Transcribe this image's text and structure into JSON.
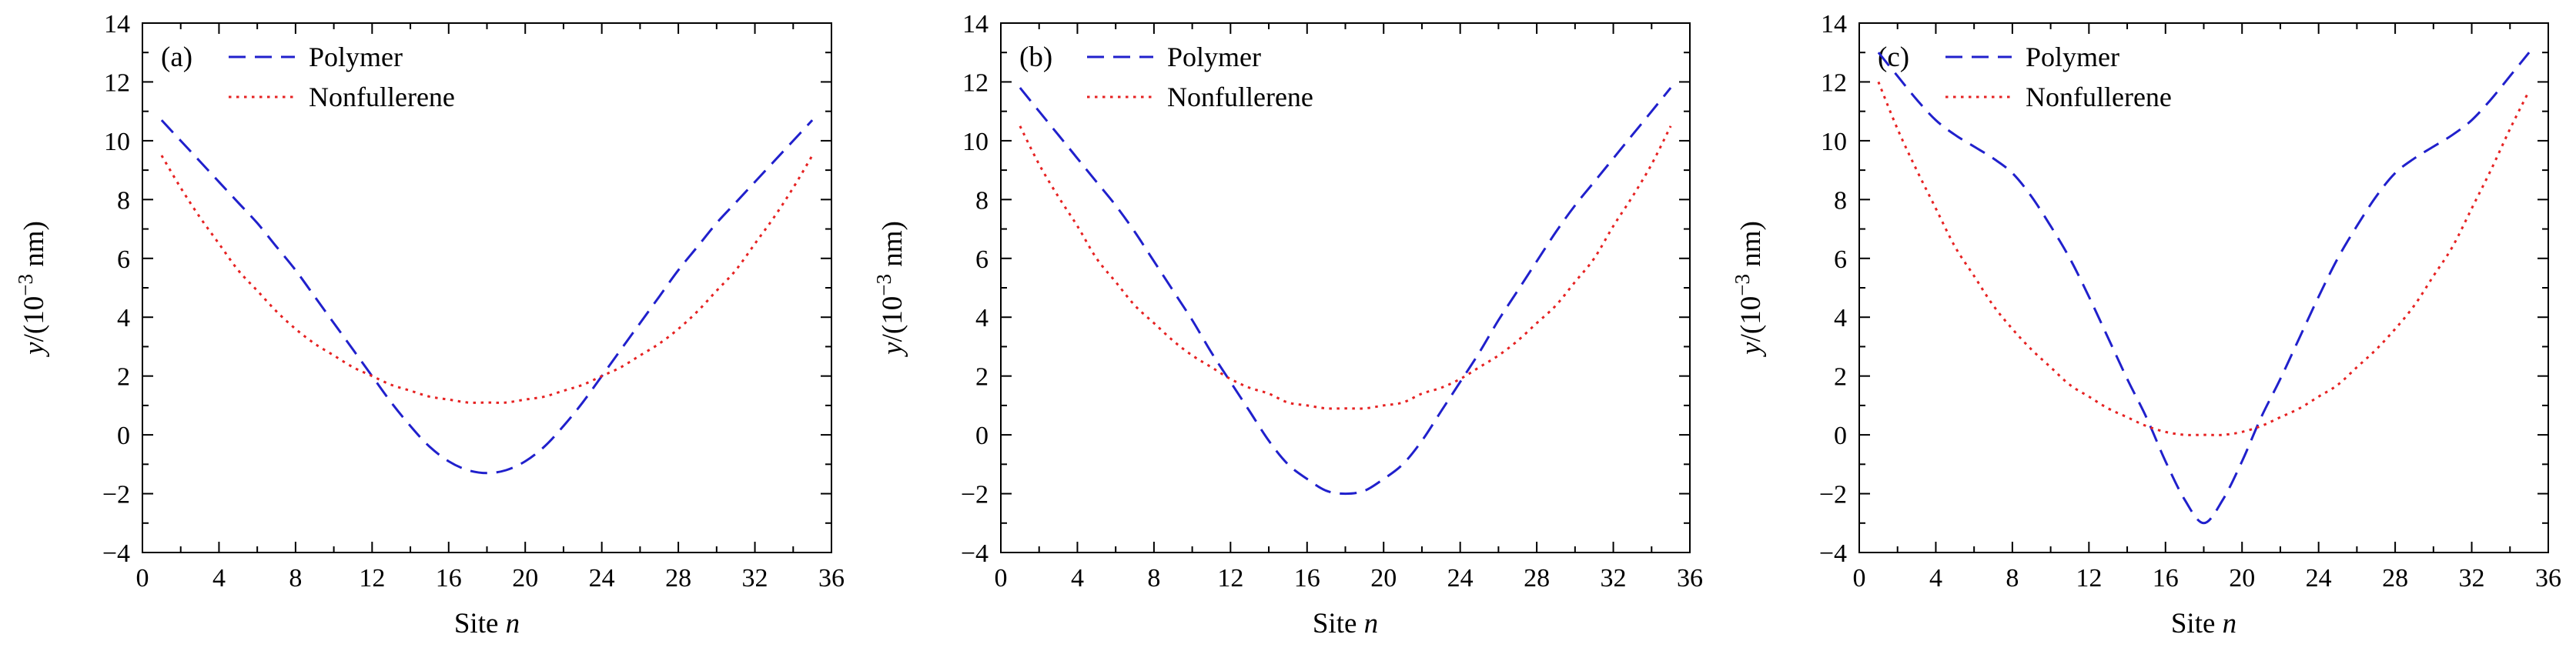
{
  "figure": {
    "description": "Three-panel line figure comparing Polymer and Nonfullerene lattice displacement profiles",
    "xlabel_parts": {
      "pre": "Site ",
      "var": "n"
    },
    "ylabel_parts": {
      "var": "y",
      "mid": "/(10",
      "sup": "−3",
      "end": " nm)"
    },
    "axis_color": "#000000",
    "background_color": "#ffffff"
  },
  "chart_data": {
    "type": "line",
    "title": "",
    "xlabel": "Site n",
    "ylabel": "y/(10⁻³ nm)",
    "xlim": [
      0,
      36
    ],
    "ylim": [
      -4,
      14
    ],
    "xticks": [
      0,
      4,
      8,
      12,
      16,
      20,
      24,
      28,
      32,
      36
    ],
    "yticks": [
      -4,
      -2,
      0,
      2,
      4,
      6,
      8,
      10,
      12,
      14
    ],
    "x_minor_step": 2,
    "y_minor_step": 1,
    "grid": false,
    "legend_position": "upper left",
    "x": [
      1,
      2,
      3,
      4,
      5,
      6,
      7,
      8,
      9,
      10,
      11,
      12,
      13,
      14,
      15,
      16,
      17,
      18,
      19,
      20,
      21,
      22,
      23,
      24,
      25,
      26,
      27,
      28,
      29,
      30,
      31,
      32,
      33,
      34,
      35
    ],
    "panels": [
      {
        "label": "(a)",
        "series": [
          {
            "name": "Polymer",
            "color": "#2020cc",
            "linestyle": "dashed",
            "values": [
              10.7,
              10.0,
              9.3,
              8.6,
              7.9,
              7.2,
              6.4,
              5.6,
              4.7,
              3.8,
              2.9,
              2.0,
              1.1,
              0.3,
              -0.4,
              -0.9,
              -1.2,
              -1.3,
              -1.2,
              -0.9,
              -0.4,
              0.3,
              1.1,
              2.0,
              2.9,
              3.8,
              4.7,
              5.6,
              6.4,
              7.2,
              7.9,
              8.6,
              9.3,
              10.0,
              10.7
            ]
          },
          {
            "name": "Nonfullerene",
            "color": "#e62222",
            "linestyle": "dotted",
            "values": [
              9.5,
              8.4,
              7.4,
              6.5,
              5.6,
              4.9,
              4.2,
              3.6,
              3.1,
              2.7,
              2.3,
              2.0,
              1.7,
              1.5,
              1.3,
              1.2,
              1.1,
              1.1,
              1.1,
              1.2,
              1.3,
              1.5,
              1.7,
              2.0,
              2.3,
              2.7,
              3.1,
              3.6,
              4.2,
              4.9,
              5.6,
              6.5,
              7.4,
              8.4,
              9.5
            ]
          }
        ]
      },
      {
        "label": "(b)",
        "series": [
          {
            "name": "Polymer",
            "color": "#2020cc",
            "linestyle": "dashed",
            "values": [
              11.8,
              11.0,
              10.2,
              9.4,
              8.6,
              7.8,
              6.9,
              5.9,
              4.9,
              3.9,
              2.8,
              1.8,
              0.8,
              -0.2,
              -1.0,
              -1.5,
              -1.9,
              -2.0,
              -1.9,
              -1.5,
              -1.0,
              -0.2,
              0.8,
              1.8,
              2.8,
              3.9,
              4.9,
              5.9,
              6.9,
              7.8,
              8.6,
              9.4,
              10.2,
              11.0,
              11.8
            ]
          },
          {
            "name": "Nonfullerene",
            "color": "#e62222",
            "linestyle": "dotted",
            "values": [
              10.5,
              9.2,
              8.1,
              7.1,
              6.0,
              5.2,
              4.4,
              3.8,
              3.2,
              2.7,
              2.3,
              1.9,
              1.6,
              1.4,
              1.1,
              1.0,
              0.9,
              0.9,
              0.9,
              1.0,
              1.1,
              1.4,
              1.6,
              1.9,
              2.3,
              2.7,
              3.2,
              3.8,
              4.4,
              5.2,
              6.0,
              7.1,
              8.1,
              9.2,
              10.5
            ]
          }
        ]
      },
      {
        "label": "(c)",
        "series": [
          {
            "name": "Polymer",
            "color": "#2020cc",
            "linestyle": "dashed",
            "values": [
              13.0,
              12.2,
              11.4,
              10.7,
              10.2,
              9.8,
              9.4,
              8.9,
              8.1,
              7.1,
              6.0,
              4.7,
              3.3,
              1.9,
              0.6,
              -0.9,
              -2.2,
              -3.0,
              -2.2,
              -0.9,
              0.6,
              1.9,
              3.3,
              4.7,
              6.0,
              7.1,
              8.1,
              8.9,
              9.4,
              9.8,
              10.2,
              10.7,
              11.4,
              12.2,
              13.0
            ]
          },
          {
            "name": "Nonfullerene",
            "color": "#e62222",
            "linestyle": "dotted",
            "values": [
              12.0,
              10.4,
              9.0,
              7.7,
              6.4,
              5.4,
              4.4,
              3.6,
              2.9,
              2.3,
              1.7,
              1.3,
              0.9,
              0.6,
              0.3,
              0.1,
              0.0,
              0.0,
              0.0,
              0.1,
              0.3,
              0.6,
              0.9,
              1.3,
              1.7,
              2.3,
              2.9,
              3.6,
              4.4,
              5.4,
              6.4,
              7.7,
              9.0,
              10.4,
              11.7
            ]
          }
        ]
      }
    ]
  }
}
